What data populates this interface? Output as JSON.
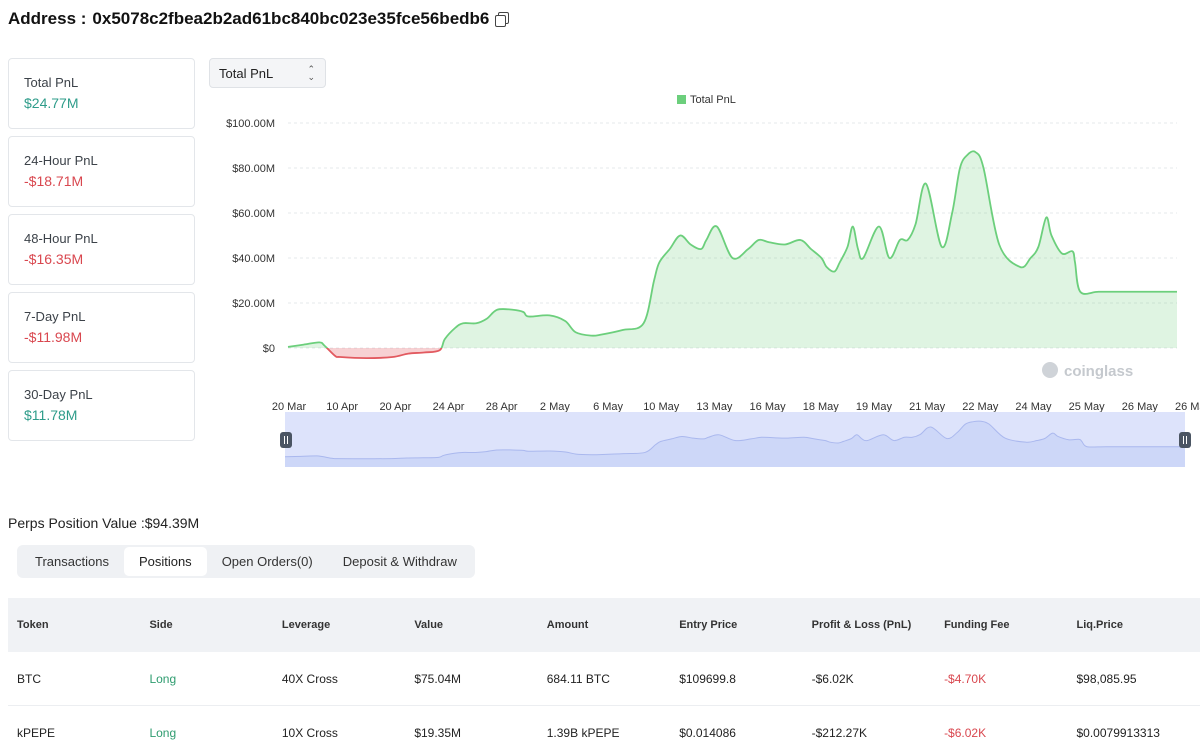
{
  "header": {
    "address_label": "Address :",
    "address": "0x5078c2fbea2b2ad61bc840bc023e35fce56bedb6",
    "copy_icon": "copy-icon"
  },
  "pnl_cards": [
    {
      "label": "Total PnL",
      "value": "$24.77M",
      "sign": "pos"
    },
    {
      "label": "24-Hour PnL",
      "value": "-$18.71M",
      "sign": "neg"
    },
    {
      "label": "48-Hour PnL",
      "value": "-$16.35M",
      "sign": "neg"
    },
    {
      "label": "7-Day PnL",
      "value": "-$11.98M",
      "sign": "neg"
    },
    {
      "label": "30-Day PnL",
      "value": "$11.78M",
      "sign": "pos"
    }
  ],
  "metric_select": {
    "value": "Total PnL"
  },
  "chart_data": {
    "type": "area",
    "legend": "Total PnL",
    "legend_position": "top",
    "watermark": "coinglass",
    "y_ticks": [
      "$100.00M",
      "$80.00M",
      "$60.00M",
      "$40.00M",
      "$20.00M",
      "$0"
    ],
    "ylim": [
      -5,
      100
    ],
    "x_ticks": [
      "20 Mar",
      "10 Apr",
      "20 Apr",
      "24 Apr",
      "28 Apr",
      "2 May",
      "6 May",
      "10 May",
      "13 May",
      "16 May",
      "18 May",
      "19 May",
      "21 May",
      "22 May",
      "24 May",
      "25 May",
      "26 May",
      "26 May"
    ],
    "x": [
      0,
      0.3,
      0.6,
      0.7,
      0.9,
      1,
      1.5,
      2,
      2.3,
      2.6,
      2.9,
      3,
      3.2,
      3.35,
      3.6,
      3.8,
      4,
      4.3,
      4.5,
      4.6,
      5,
      5.3,
      5.5,
      5.8,
      6,
      6.4,
      6.8,
      7,
      7.1,
      7.3,
      7.5,
      7.7,
      7.9,
      8,
      8.2,
      8.5,
      8.8,
      9,
      9.2,
      9.5,
      9.8,
      10,
      10.2,
      10.3,
      10.45,
      10.55,
      10.7,
      10.8,
      10.9,
      11,
      11.3,
      11.5,
      11.7,
      11.85,
      12,
      12.2,
      12.5,
      12.7,
      12.85,
      13,
      13.15,
      13.3,
      13.6,
      14,
      14.2,
      14.35,
      14.5,
      14.6,
      14.8,
      15,
      15.05,
      15.15,
      15.5,
      16,
      16.5,
      17
    ],
    "y": [
      0.5,
      1.5,
      2.5,
      1,
      -3.5,
      -4,
      -4.5,
      -4,
      -2.5,
      -2,
      -1,
      4,
      9,
      11,
      11,
      13,
      17,
      17,
      16,
      14,
      14.5,
      12,
      7,
      5.5,
      6,
      8,
      11,
      30,
      38,
      44,
      50,
      46,
      44,
      48,
      54,
      40,
      44,
      48,
      47,
      46,
      48,
      44,
      40,
      36,
      34,
      38,
      45,
      54,
      44,
      40,
      54,
      40,
      48,
      48,
      55,
      73,
      45,
      60,
      80,
      86,
      87,
      80,
      46,
      36,
      40,
      45,
      58,
      50,
      42,
      43,
      38,
      25,
      25,
      25,
      25,
      25
    ]
  },
  "perps": {
    "label": "Perps Position Value :",
    "value": "$94.39M"
  },
  "tabs": [
    {
      "label": "Transactions",
      "active": false
    },
    {
      "label": "Positions",
      "active": true
    },
    {
      "label": "Open Orders(0)",
      "active": false
    },
    {
      "label": "Deposit & Withdraw",
      "active": false
    }
  ],
  "table": {
    "headers": [
      "Token",
      "Side",
      "Leverage",
      "Value",
      "Amount",
      "Entry Price",
      "Profit & Loss (PnL)",
      "Funding Fee",
      "Liq.Price"
    ],
    "rows": [
      [
        "BTC",
        "Long",
        "40X Cross",
        "$75.04M",
        "684.11 BTC",
        "$109699.8",
        "-$6.02K",
        "-$4.70K",
        "$98,085.95"
      ],
      [
        "kPEPE",
        "Long",
        "10X Cross",
        "$19.35M",
        "1.39B kPEPE",
        "$0.014086",
        "-$212.27K",
        "-$6.02K",
        "$0.0079913313"
      ]
    ]
  },
  "colors": {
    "positive": "#2e9c8a",
    "negative": "#d9474f",
    "chart_green": "#6ccf7c",
    "chart_red": "#e25a60"
  }
}
